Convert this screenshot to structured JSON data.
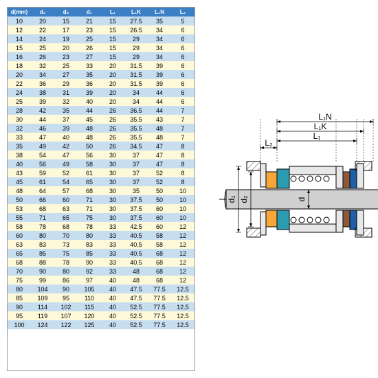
{
  "table": {
    "headers": [
      "d(mm)",
      "d₂",
      "d₃",
      "d₁",
      "L₁",
      "L₁K",
      "L₁N",
      "L₂"
    ],
    "rows": [
      [
        10,
        20,
        15,
        21,
        15,
        27.5,
        35.0,
        5.0
      ],
      [
        12,
        22,
        17,
        23,
        15,
        26.5,
        34.0,
        6.0
      ],
      [
        14,
        24,
        19,
        25,
        15,
        29.0,
        34.0,
        6.0
      ],
      [
        15,
        25,
        20,
        26,
        15,
        29.0,
        34.0,
        6.0
      ],
      [
        16,
        26,
        23,
        27,
        15,
        29.0,
        34.0,
        6.0
      ],
      [
        18,
        32,
        25,
        33,
        20,
        31.5,
        39.0,
        6.0
      ],
      [
        20,
        34,
        27,
        35,
        20,
        31.5,
        39.0,
        6.0
      ],
      [
        22,
        36,
        29,
        36,
        20,
        31.5,
        39.0,
        6.0
      ],
      [
        24,
        38,
        31,
        39,
        20,
        34.0,
        44.0,
        6.0
      ],
      [
        25,
        39,
        32,
        40,
        20,
        34.0,
        44.0,
        6.0
      ],
      [
        28,
        42,
        35,
        44,
        26,
        36.5,
        44.0,
        7.0
      ],
      [
        30,
        44,
        37,
        45,
        26,
        35.5,
        43.0,
        7.0
      ],
      [
        32,
        46,
        39,
        48,
        26,
        35.5,
        48.0,
        7.0
      ],
      [
        33,
        47,
        40,
        48,
        26,
        35.5,
        48.0,
        7.0
      ],
      [
        35,
        49,
        42,
        50,
        26,
        34.5,
        47.0,
        8.0
      ],
      [
        38,
        54,
        47,
        56,
        30,
        37.0,
        47.0,
        8.0
      ],
      [
        40,
        56,
        49,
        58,
        30,
        37.0,
        47.0,
        8.0
      ],
      [
        43,
        59,
        52,
        61,
        30,
        37.0,
        52.0,
        8.0
      ],
      [
        45,
        61,
        54,
        65,
        30,
        37.0,
        52.0,
        8.0
      ],
      [
        48,
        64,
        57,
        68,
        30,
        35.0,
        50.0,
        10.0
      ],
      [
        50,
        66,
        60,
        71,
        30,
        37.5,
        50.0,
        10.0
      ],
      [
        53,
        68,
        63,
        71,
        30,
        37.5,
        60.0,
        10.0
      ],
      [
        55,
        71,
        65,
        75,
        30,
        37.5,
        60.0,
        10.0
      ],
      [
        58,
        78,
        68,
        78,
        33,
        42.5,
        60.0,
        12.0
      ],
      [
        60,
        80,
        70,
        80,
        33,
        40.5,
        58.0,
        12.0
      ],
      [
        63,
        83,
        73,
        83,
        33,
        40.5,
        58.0,
        12.0
      ],
      [
        65,
        85,
        75,
        85,
        33,
        40.5,
        68.0,
        12.0
      ],
      [
        68,
        88,
        78,
        90,
        33,
        40.5,
        68.0,
        12.0
      ],
      [
        70,
        90,
        80,
        92,
        33,
        48.0,
        68.0,
        12.0
      ],
      [
        75,
        99,
        86,
        97,
        40,
        48.0,
        68.0,
        12.0
      ],
      [
        80,
        104,
        90,
        105,
        40,
        47.5,
        77.5,
        12.5
      ],
      [
        85,
        109,
        95,
        110,
        40,
        47.5,
        77.5,
        12.5
      ],
      [
        90,
        114,
        102,
        115,
        40,
        52.5,
        77.5,
        12.5
      ],
      [
        95,
        119,
        107,
        120,
        40,
        52.5,
        77.5,
        12.5
      ],
      [
        100,
        124,
        122,
        125,
        40,
        52.5,
        77.5,
        12.5
      ]
    ],
    "header_bg": "#3b7fc4",
    "header_fg": "#ffffff",
    "row_bg_a": "#c7ddf0",
    "row_bg_b": "#fef9d8"
  },
  "diagram": {
    "labels": {
      "L2": "L₂",
      "L1N": "L₁N",
      "L1K": "L₁K",
      "L1": "L₁",
      "d1": "d₁",
      "d2": "d₂",
      "d": "d",
      "d3": "d₃"
    },
    "colors": {
      "shaft": "#d0d0d0",
      "body_fill": "#e8e8e8",
      "line": "#000000",
      "hatch": "#555555",
      "orange": "#f7a63a",
      "teal": "#2b9bb0",
      "brown": "#8b5a3c",
      "blue": "#1f5fa8",
      "centerline": "#000000"
    }
  }
}
